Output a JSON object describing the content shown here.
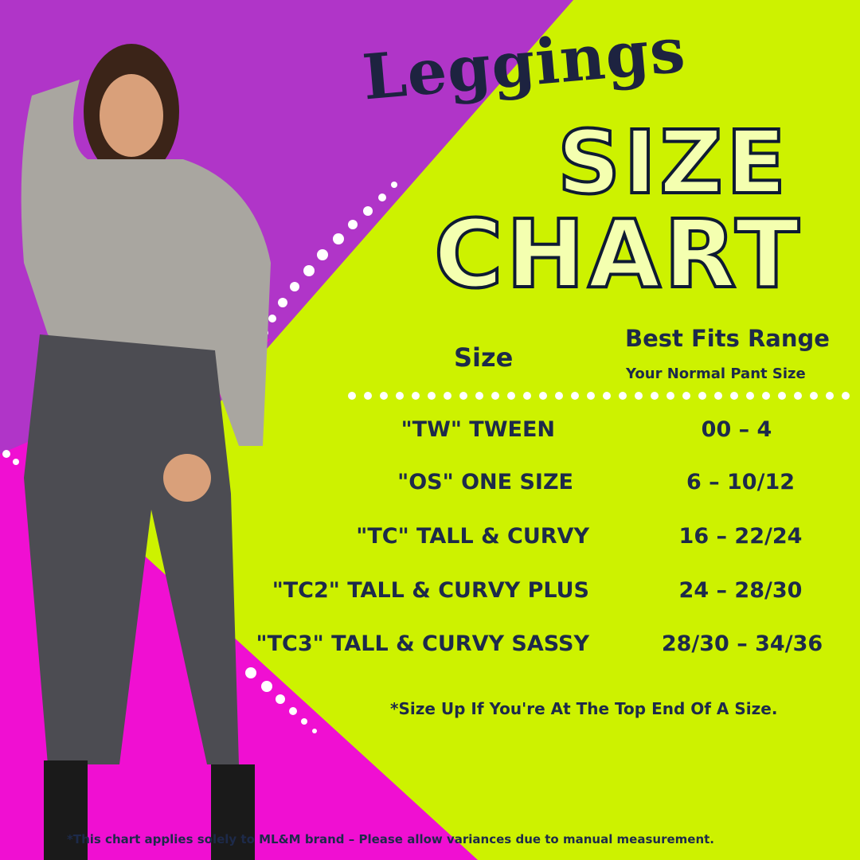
{
  "title": {
    "script": "Leggings",
    "line1": "SIZE",
    "line2": "CHART"
  },
  "headers": {
    "size": "Size",
    "range": "Best Fits Range",
    "range_sub": "Your Normal Pant Size"
  },
  "rows": [
    {
      "size": "\"TW\"  TWEEN",
      "range": "00 – 4"
    },
    {
      "size": "\"OS\"  ONE SIZE",
      "range": "6 – 10/12"
    },
    {
      "size": "\"TC\"  TALL & CURVY",
      "range": "16 – 22/24"
    },
    {
      "size": "\"TC2\" TALL & CURVY PLUS",
      "range": "24 – 28/30"
    },
    {
      "size": "\"TC3\" TALL & CURVY SASSY",
      "range": "28/30 – 34/36"
    }
  ],
  "note": "*Size Up If You're At The Top End Of A Size.",
  "footnote": "*This chart  applies solely to ML&M brand  – Please allow  variances due to manual measurement.",
  "colors": {
    "purple": "#b035c8",
    "lime": "#cdf200",
    "magenta": "#f00fd2",
    "navy": "#1d2a4a"
  }
}
